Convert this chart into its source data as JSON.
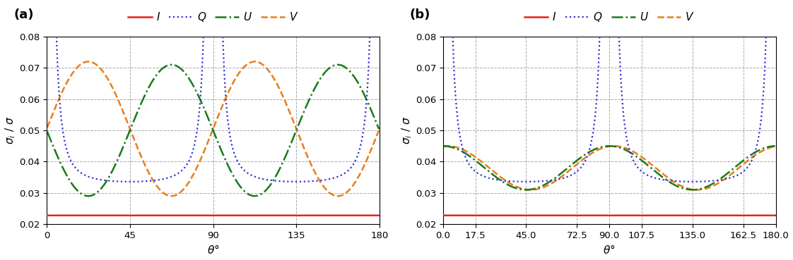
{
  "title_a": "(a)",
  "title_b": "(b)",
  "xlim_a": [
    0,
    180
  ],
  "xlim_b": [
    0,
    180
  ],
  "ylim": [
    0.02,
    0.08
  ],
  "yticks": [
    0.02,
    0.03,
    0.04,
    0.05,
    0.06,
    0.07,
    0.08
  ],
  "xticks_a": [
    0,
    45,
    90,
    135,
    180
  ],
  "xticks_b": [
    0,
    17.5,
    45,
    72.5,
    90,
    107.5,
    135,
    162.5,
    180
  ],
  "color_I": "#e8221a",
  "color_Q": "#3333cc",
  "color_U": "#1a7a1a",
  "color_V": "#e87e1a",
  "I_value": 0.0228,
  "grid_color": "#aaaaaa",
  "grid_linestyle": "--",
  "background_color": "#ffffff",
  "fig_width": 11.22,
  "fig_height": 3.69,
  "dpi": 100,
  "panel_a": {
    "Q_base": 0.032,
    "Q_spike": 0.0016,
    "U_min": 0.029,
    "U_max": 0.071,
    "U_phase_deg": 22.5,
    "V_min": 0.029,
    "V_max": 0.072,
    "V_phase_deg": 0.0
  },
  "panel_b": {
    "Q_base": 0.032,
    "Q_spike": 0.0016,
    "U_min": 0.031,
    "U_max": 0.045,
    "U_phase_deg": 0.0,
    "V_min": 0.031,
    "V_max": 0.045,
    "V_phase_deg": 5.0
  }
}
